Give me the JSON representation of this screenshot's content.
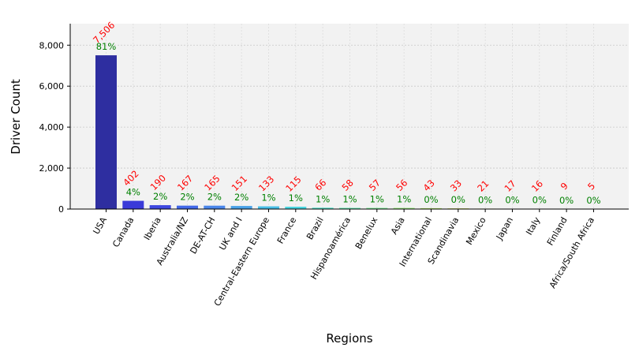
{
  "chart_data": {
    "type": "bar",
    "title": "",
    "xlabel": "Regions",
    "ylabel": "Driver Count",
    "ylim": [
      0,
      9050
    ],
    "yticks": [
      0,
      2000,
      4000,
      6000,
      8000
    ],
    "ytick_labels": [
      "0",
      "2,000",
      "4,000",
      "6,000",
      "8,000"
    ],
    "grid": true,
    "categories": [
      "USA",
      "Canada",
      "Iberia",
      "Australia/NZ",
      "DE-AT-CH",
      "UK and I",
      "Central-Eastern Europe",
      "France",
      "Brazil",
      "Hispanoamérica",
      "Benelux",
      "Asia",
      "International",
      "Scandinavia",
      "Mexico",
      "Japan",
      "Italy",
      "Finland",
      "Africa/South Africa"
    ],
    "values": [
      7506,
      402,
      190,
      167,
      165,
      151,
      133,
      115,
      66,
      58,
      57,
      56,
      43,
      33,
      21,
      17,
      16,
      9,
      5
    ],
    "value_labels": [
      "7,506",
      "402",
      "190",
      "167",
      "165",
      "151",
      "133",
      "115",
      "66",
      "58",
      "57",
      "56",
      "43",
      "33",
      "21",
      "17",
      "16",
      "9",
      "5"
    ],
    "percent_labels": [
      "81%",
      "4%",
      "2%",
      "2%",
      "2%",
      "2%",
      "1%",
      "1%",
      "1%",
      "1%",
      "1%",
      "1%",
      "0%",
      "0%",
      "0%",
      "0%",
      "0%",
      "0%",
      "0%"
    ],
    "colors": [
      "#2e2ea0",
      "#3a3ad8",
      "#3f48e0",
      "#4268e8",
      "#4a86ea",
      "#4aa2e8",
      "#48bee6",
      "#4ad6e0",
      "#52e0c8",
      "#62e8b0",
      "#7cec98",
      "#98ec7c",
      "#b4e866",
      "#cee058",
      "#e4d24c",
      "#f0b040",
      "#ee8838",
      "#e85c30",
      "#d83030"
    ]
  }
}
